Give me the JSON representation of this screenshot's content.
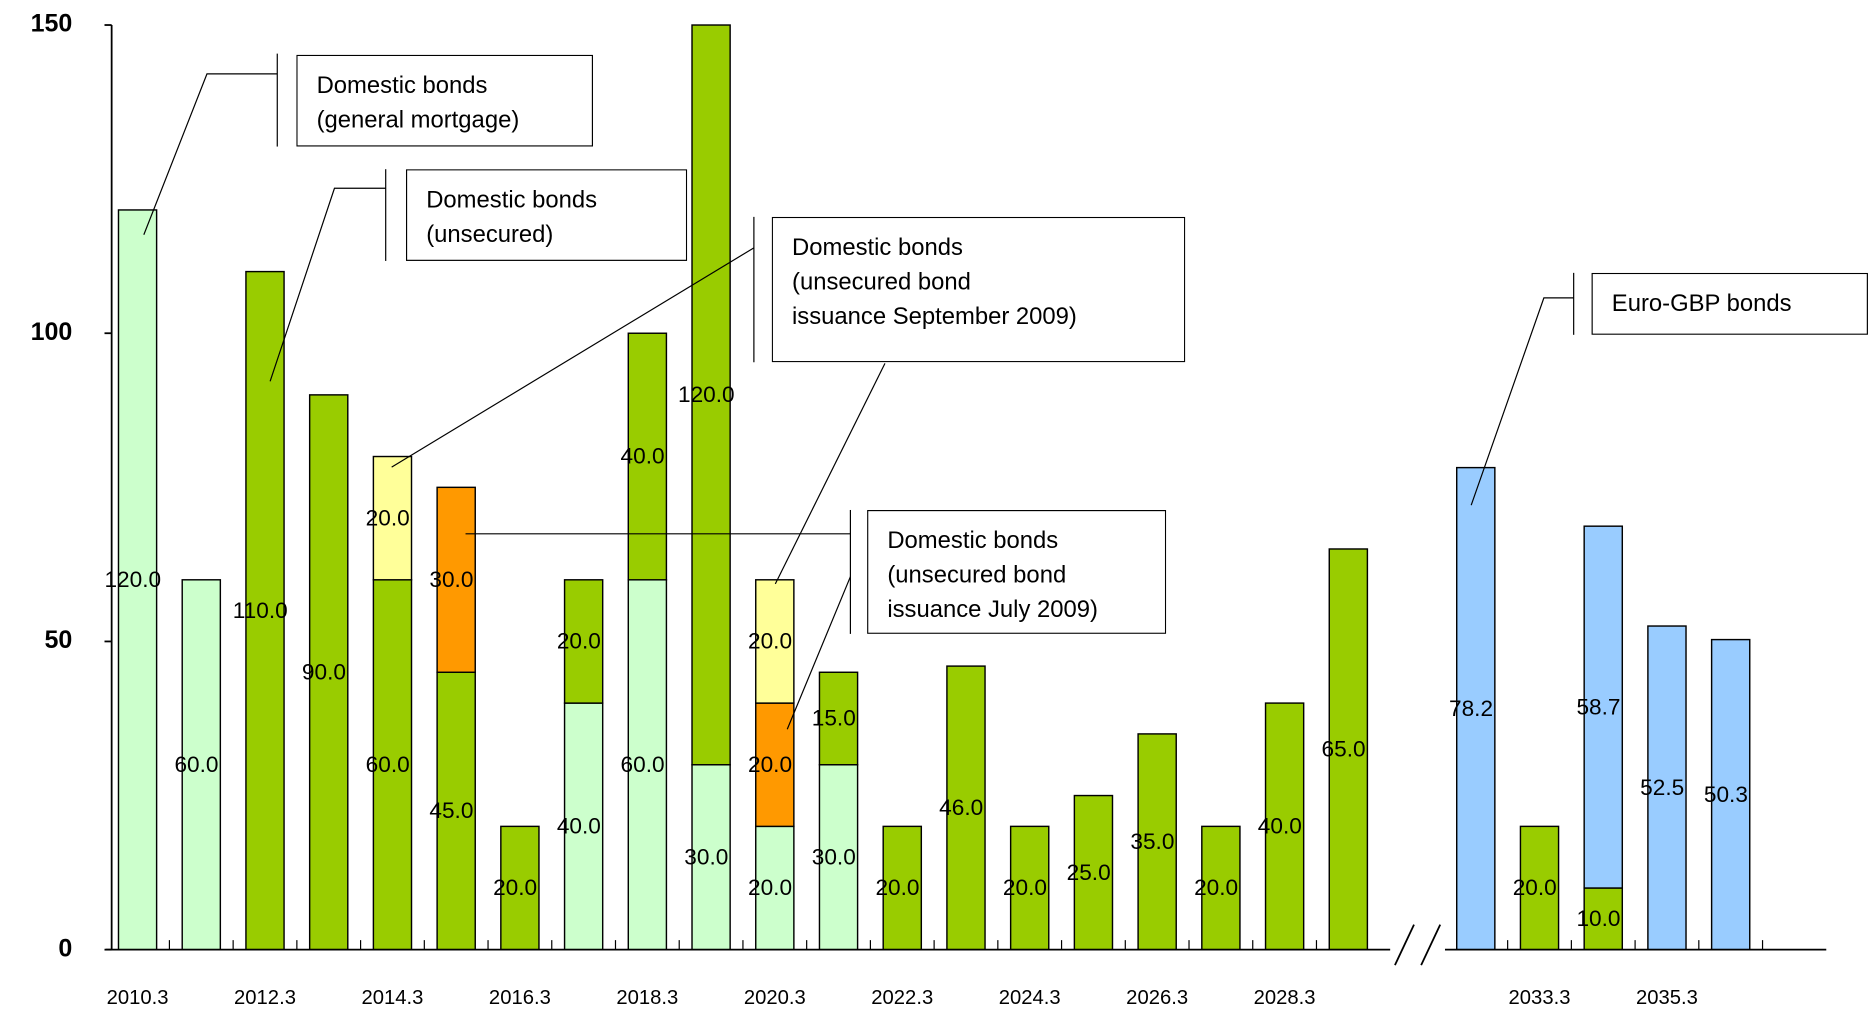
{
  "chart_data": {
    "type": "stacked_bar",
    "categories": [
      "2010.3",
      null,
      "2012.3",
      null,
      "2014.3",
      null,
      "2016.3",
      null,
      "2018.3",
      null,
      "2020.3",
      null,
      "2022.3",
      null,
      "2024.3",
      null,
      "2026.3",
      null,
      "2028.3",
      null,
      null,
      null,
      "2033.3",
      null,
      "2035.3",
      null,
      null
    ],
    "ylim": [
      0,
      150
    ],
    "yticks": [
      0,
      50,
      100,
      150
    ],
    "series": [
      {
        "name": "Domestic bonds\n(general mortgage)",
        "color": "#ccffcc",
        "values": [
          120,
          60,
          null,
          null,
          null,
          null,
          null,
          40,
          60,
          30,
          20,
          30,
          null,
          null,
          null,
          null,
          null,
          null,
          null,
          null,
          null,
          null,
          null,
          null,
          null,
          null,
          null
        ],
        "value_labels": [
          "120.0",
          "60.0",
          null,
          null,
          null,
          null,
          null,
          "40.0",
          "60.0",
          "30.0",
          "20.0",
          "30.0",
          null,
          null,
          null,
          null,
          null,
          null,
          null,
          null,
          null,
          null,
          null,
          null,
          null,
          null,
          null
        ]
      },
      {
        "name": "Domestic bonds\n(unsecured)",
        "color": "#99cc00",
        "values": [
          null,
          null,
          110,
          90,
          60,
          45,
          20,
          20,
          40,
          120,
          null,
          15,
          20,
          46,
          20,
          25,
          35,
          20,
          40,
          65,
          null,
          null,
          20,
          10,
          null,
          null,
          null
        ],
        "value_labels": [
          null,
          null,
          "110.0",
          "90.0",
          "60.0",
          "45.0",
          "20.0",
          "20.0",
          "40.0",
          "120.0",
          null,
          "15.0",
          "20.0",
          "46.0",
          "20.0",
          "25.0",
          "35.0",
          "20.0",
          "40.0",
          "65.0",
          null,
          null,
          "20.0",
          "10.0",
          null,
          null,
          null
        ]
      },
      {
        "name": "Domestic bonds\n(unsecured bond\nissuance July 2009)",
        "color": "#ff9900",
        "values": [
          null,
          null,
          null,
          null,
          null,
          30,
          null,
          null,
          null,
          null,
          20,
          null,
          null,
          null,
          null,
          null,
          null,
          null,
          null,
          null,
          null,
          null,
          null,
          null,
          null,
          null,
          null
        ],
        "value_labels": [
          null,
          null,
          null,
          null,
          null,
          "30.0",
          null,
          null,
          null,
          null,
          "20.0",
          null,
          null,
          null,
          null,
          null,
          null,
          null,
          null,
          null,
          null,
          null,
          null,
          null,
          null,
          null,
          null
        ]
      },
      {
        "name": "Domestic bonds\n(unsecured bond\nissuance September 2009)",
        "color": "#ffff99",
        "values": [
          null,
          null,
          null,
          null,
          20,
          null,
          null,
          null,
          null,
          null,
          20,
          null,
          null,
          null,
          null,
          null,
          null,
          null,
          null,
          null,
          null,
          null,
          null,
          null,
          null,
          null,
          null
        ],
        "value_labels": [
          null,
          null,
          null,
          null,
          "20.0",
          null,
          null,
          null,
          null,
          null,
          "20.0",
          null,
          null,
          null,
          null,
          null,
          null,
          null,
          null,
          null,
          null,
          null,
          null,
          null,
          null,
          null,
          null
        ]
      },
      {
        "name": "Euro-GBP bonds",
        "color": "#99ccff",
        "values": [
          null,
          null,
          null,
          null,
          null,
          null,
          null,
          null,
          null,
          null,
          null,
          null,
          null,
          null,
          null,
          null,
          null,
          null,
          null,
          null,
          null,
          78.2,
          null,
          58.7,
          52.5,
          50.3,
          null
        ],
        "value_labels": [
          null,
          null,
          null,
          null,
          null,
          null,
          null,
          null,
          null,
          null,
          null,
          null,
          null,
          null,
          null,
          null,
          null,
          null,
          null,
          null,
          null,
          "78.2",
          null,
          "58.7",
          "52.5",
          "50.3",
          null
        ]
      }
    ]
  }
}
